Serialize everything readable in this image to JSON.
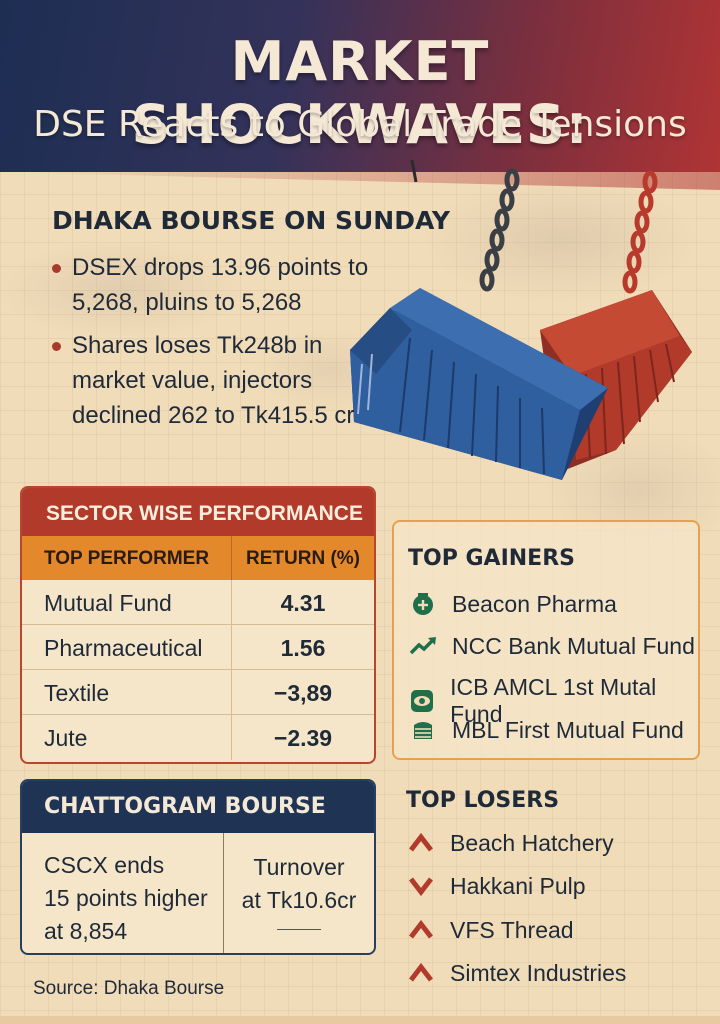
{
  "header": {
    "title": "MARKET SHOCKWAVES:",
    "subtitle": "DSE Reacts to Global Trade Tensions"
  },
  "dhaka": {
    "title": "DHAKA BOURSE ON SUNDAY",
    "bullets": [
      "DSEX drops 13.96 points to 5,268, pluins to 5,268",
      "Shares loses Tk248b in market value, injectors declined 262 to Tk415.5 cr"
    ]
  },
  "sector": {
    "title": "SECTOR WISE PERFORMANCE",
    "col_performer": "TOP PERFORMER",
    "col_return": "RETURN (%)",
    "rows": [
      {
        "name": "Mutual Fund",
        "value": "4.31"
      },
      {
        "name": "Pharmaceutical",
        "value": "1.56"
      },
      {
        "name": "Textile",
        "value": "−3,89"
      },
      {
        "name": "Jute",
        "value": "−2.39"
      }
    ]
  },
  "gainers": {
    "title": "TOP GAINERS",
    "items": [
      {
        "name": "Beacon Pharma",
        "icon": "pharma-icon"
      },
      {
        "name": "NCC Bank Mutual Fund",
        "icon": "trend-up-icon"
      },
      {
        "name": "ICB AMCL 1st Mutal Fund",
        "icon": "eye-icon"
      },
      {
        "name": "MBL First Mutual Fund",
        "icon": "coin-stack-icon"
      }
    ]
  },
  "chattogram": {
    "title": "CHATTOGRAM BOURSE",
    "left_lines": [
      "CSCX ends",
      "15 points higher",
      "at 8,854"
    ],
    "right_lines": [
      "Turnover",
      "at Tk10.6cr"
    ]
  },
  "losers": {
    "title": "TOP LOSERS",
    "items": [
      {
        "name": "Beach Hatchery",
        "icon": "arrow-up-icon"
      },
      {
        "name": "Hakkani Pulp",
        "icon": "arrow-down-icon"
      },
      {
        "name": "VFS Thread",
        "icon": "arrow-up-icon"
      },
      {
        "name": "Simtex Industries",
        "icon": "arrow-up-icon"
      }
    ]
  },
  "source": "Source: Dhaka Bourse",
  "colors": {
    "navy": "#1d2e53",
    "red": "#b13a2b",
    "orange": "#e3882b",
    "cream": "#f1dcb9",
    "green": "#1f6f4a",
    "loser_red": "#b13a2b"
  }
}
